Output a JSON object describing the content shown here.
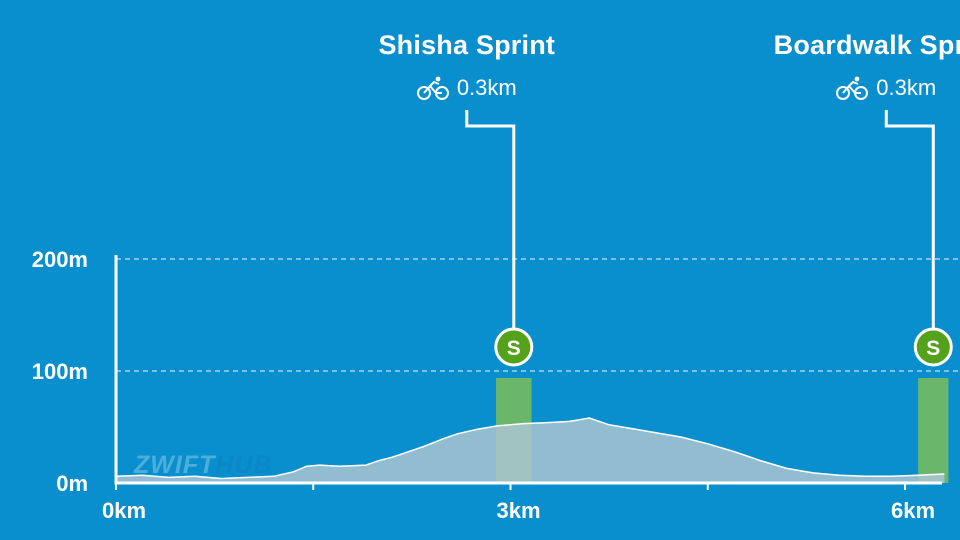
{
  "chart_data": {
    "type": "area",
    "xlabel": "",
    "ylabel": "",
    "xlim": [
      0,
      6.3
    ],
    "ylim": [
      0,
      200
    ],
    "x_ticks": [
      {
        "value": 0,
        "label": "0km"
      },
      {
        "value": 1.5,
        "label": ""
      },
      {
        "value": 3,
        "label": "3km"
      },
      {
        "value": 4.5,
        "label": ""
      },
      {
        "value": 6,
        "label": "6km"
      }
    ],
    "y_ticks": [
      {
        "value": 0,
        "label": "0m"
      },
      {
        "value": 100,
        "label": "100m"
      },
      {
        "value": 200,
        "label": "200m"
      }
    ],
    "grid": "horizontal dashed at 100m and 200m",
    "elevation_profile": {
      "x_km": [
        0,
        0.2,
        0.4,
        0.6,
        0.8,
        1.0,
        1.2,
        1.35,
        1.45,
        1.55,
        1.7,
        1.9,
        2.0,
        2.1,
        2.2,
        2.35,
        2.5,
        2.6,
        2.75,
        2.9,
        3.0,
        3.1,
        3.3,
        3.45,
        3.6,
        3.65,
        3.75,
        3.9,
        4.1,
        4.3,
        4.5,
        4.7,
        4.9,
        5.1,
        5.3,
        5.5,
        5.7,
        5.9,
        6.1,
        6.3
      ],
      "elevation_m": [
        6,
        7,
        5,
        6,
        4,
        5,
        6,
        10,
        15,
        16,
        15,
        16,
        20,
        23,
        27,
        33,
        40,
        44,
        48,
        51,
        52,
        53,
        54,
        55,
        58,
        56,
        52,
        49,
        45,
        41,
        35,
        28,
        20,
        13,
        9,
        7,
        6,
        6,
        7,
        8
      ]
    },
    "sprints": [
      {
        "name": "Shisha Sprint",
        "distance": "0.3km",
        "start_km": 2.89,
        "end_km": 3.16,
        "badge": "S"
      },
      {
        "name": "Boardwalk Sprint",
        "distance": "0.3km",
        "start_km": 6.1,
        "end_km": 6.33,
        "badge": "S"
      }
    ]
  },
  "colors": {
    "background": "#0a8fce",
    "profile_fill": "#aac5d1",
    "profile_stroke": "#ffffff",
    "sprint_segment": "#8bc34a",
    "badge_fill": "#54a21b",
    "text": "#ffffff"
  },
  "icons": {
    "sprint_distance": "bicycle-icon"
  },
  "watermark": {
    "part1": "ZWIFT",
    "part2": "HUB"
  }
}
